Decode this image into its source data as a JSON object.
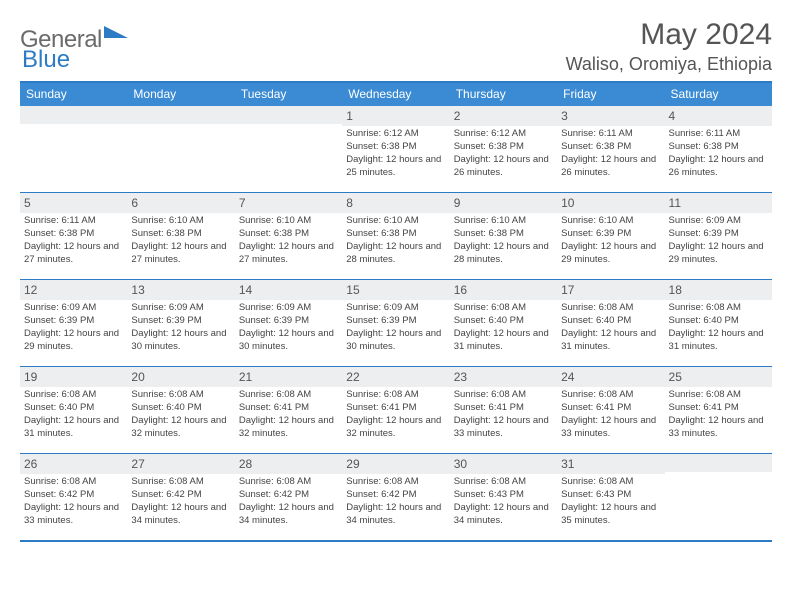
{
  "logo": {
    "text1": "General",
    "text2": "Blue"
  },
  "title": "May 2024",
  "location": "Waliso, Oromiya, Ethiopia",
  "colors": {
    "header_bg": "#3b8bd4",
    "border": "#2d7bc4",
    "daynum_bg": "#eceeef",
    "text_muted": "#555555",
    "text_body": "#444444"
  },
  "weekdays": [
    "Sunday",
    "Monday",
    "Tuesday",
    "Wednesday",
    "Thursday",
    "Friday",
    "Saturday"
  ],
  "weeks": [
    [
      {
        "n": "",
        "sr": "",
        "ss": "",
        "dl": ""
      },
      {
        "n": "",
        "sr": "",
        "ss": "",
        "dl": ""
      },
      {
        "n": "",
        "sr": "",
        "ss": "",
        "dl": ""
      },
      {
        "n": "1",
        "sr": "6:12 AM",
        "ss": "6:38 PM",
        "dl": "12 hours and 25 minutes."
      },
      {
        "n": "2",
        "sr": "6:12 AM",
        "ss": "6:38 PM",
        "dl": "12 hours and 26 minutes."
      },
      {
        "n": "3",
        "sr": "6:11 AM",
        "ss": "6:38 PM",
        "dl": "12 hours and 26 minutes."
      },
      {
        "n": "4",
        "sr": "6:11 AM",
        "ss": "6:38 PM",
        "dl": "12 hours and 26 minutes."
      }
    ],
    [
      {
        "n": "5",
        "sr": "6:11 AM",
        "ss": "6:38 PM",
        "dl": "12 hours and 27 minutes."
      },
      {
        "n": "6",
        "sr": "6:10 AM",
        "ss": "6:38 PM",
        "dl": "12 hours and 27 minutes."
      },
      {
        "n": "7",
        "sr": "6:10 AM",
        "ss": "6:38 PM",
        "dl": "12 hours and 27 minutes."
      },
      {
        "n": "8",
        "sr": "6:10 AM",
        "ss": "6:38 PM",
        "dl": "12 hours and 28 minutes."
      },
      {
        "n": "9",
        "sr": "6:10 AM",
        "ss": "6:38 PM",
        "dl": "12 hours and 28 minutes."
      },
      {
        "n": "10",
        "sr": "6:10 AM",
        "ss": "6:39 PM",
        "dl": "12 hours and 29 minutes."
      },
      {
        "n": "11",
        "sr": "6:09 AM",
        "ss": "6:39 PM",
        "dl": "12 hours and 29 minutes."
      }
    ],
    [
      {
        "n": "12",
        "sr": "6:09 AM",
        "ss": "6:39 PM",
        "dl": "12 hours and 29 minutes."
      },
      {
        "n": "13",
        "sr": "6:09 AM",
        "ss": "6:39 PM",
        "dl": "12 hours and 30 minutes."
      },
      {
        "n": "14",
        "sr": "6:09 AM",
        "ss": "6:39 PM",
        "dl": "12 hours and 30 minutes."
      },
      {
        "n": "15",
        "sr": "6:09 AM",
        "ss": "6:39 PM",
        "dl": "12 hours and 30 minutes."
      },
      {
        "n": "16",
        "sr": "6:08 AM",
        "ss": "6:40 PM",
        "dl": "12 hours and 31 minutes."
      },
      {
        "n": "17",
        "sr": "6:08 AM",
        "ss": "6:40 PM",
        "dl": "12 hours and 31 minutes."
      },
      {
        "n": "18",
        "sr": "6:08 AM",
        "ss": "6:40 PM",
        "dl": "12 hours and 31 minutes."
      }
    ],
    [
      {
        "n": "19",
        "sr": "6:08 AM",
        "ss": "6:40 PM",
        "dl": "12 hours and 31 minutes."
      },
      {
        "n": "20",
        "sr": "6:08 AM",
        "ss": "6:40 PM",
        "dl": "12 hours and 32 minutes."
      },
      {
        "n": "21",
        "sr": "6:08 AM",
        "ss": "6:41 PM",
        "dl": "12 hours and 32 minutes."
      },
      {
        "n": "22",
        "sr": "6:08 AM",
        "ss": "6:41 PM",
        "dl": "12 hours and 32 minutes."
      },
      {
        "n": "23",
        "sr": "6:08 AM",
        "ss": "6:41 PM",
        "dl": "12 hours and 33 minutes."
      },
      {
        "n": "24",
        "sr": "6:08 AM",
        "ss": "6:41 PM",
        "dl": "12 hours and 33 minutes."
      },
      {
        "n": "25",
        "sr": "6:08 AM",
        "ss": "6:41 PM",
        "dl": "12 hours and 33 minutes."
      }
    ],
    [
      {
        "n": "26",
        "sr": "6:08 AM",
        "ss": "6:42 PM",
        "dl": "12 hours and 33 minutes."
      },
      {
        "n": "27",
        "sr": "6:08 AM",
        "ss": "6:42 PM",
        "dl": "12 hours and 34 minutes."
      },
      {
        "n": "28",
        "sr": "6:08 AM",
        "ss": "6:42 PM",
        "dl": "12 hours and 34 minutes."
      },
      {
        "n": "29",
        "sr": "6:08 AM",
        "ss": "6:42 PM",
        "dl": "12 hours and 34 minutes."
      },
      {
        "n": "30",
        "sr": "6:08 AM",
        "ss": "6:43 PM",
        "dl": "12 hours and 34 minutes."
      },
      {
        "n": "31",
        "sr": "6:08 AM",
        "ss": "6:43 PM",
        "dl": "12 hours and 35 minutes."
      },
      {
        "n": "",
        "sr": "",
        "ss": "",
        "dl": ""
      }
    ]
  ],
  "labels": {
    "sunrise": "Sunrise:",
    "sunset": "Sunset:",
    "daylight": "Daylight:"
  }
}
